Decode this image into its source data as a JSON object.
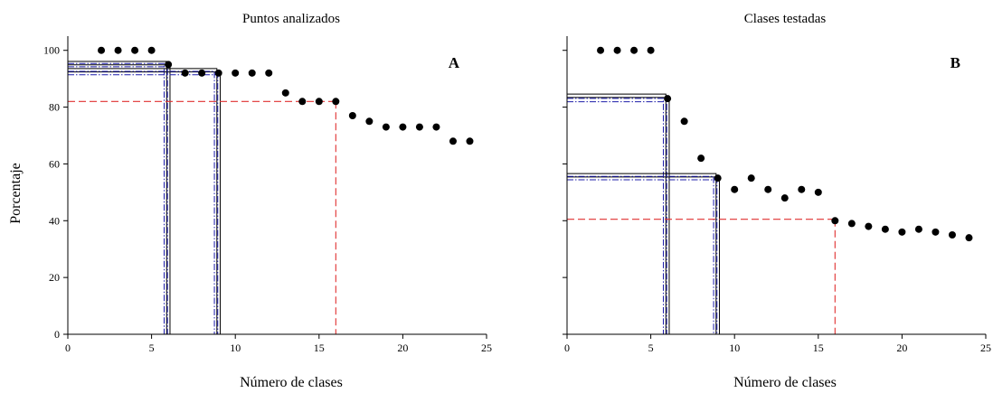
{
  "ylabel": "Porcentaje",
  "chart_data": [
    {
      "type": "scatter",
      "title": "Puntos analizados",
      "panel_letter": "A",
      "xlabel": "Número de clases",
      "ylabel": "Porcentaje",
      "xlim": [
        0,
        25
      ],
      "ylim": [
        0,
        105
      ],
      "xticks": [
        0,
        5,
        10,
        15,
        20,
        25
      ],
      "yticks": [
        0,
        20,
        40,
        60,
        80,
        100
      ],
      "show_y_tick_labels": true,
      "points": {
        "x": [
          2,
          3,
          4,
          5,
          6,
          7,
          8,
          9,
          10,
          11,
          12,
          13,
          14,
          15,
          16,
          17,
          18,
          19,
          20,
          21,
          22,
          23,
          24
        ],
        "y": [
          100,
          100,
          100,
          100,
          95,
          92,
          92,
          92,
          92,
          92,
          92,
          85,
          82,
          82,
          82,
          77,
          75,
          73,
          73,
          73,
          73,
          68,
          68
        ]
      },
      "reference_lines": [
        {
          "style": "solid-double",
          "color": "#000000",
          "x": 6.0,
          "y": 95.5,
          "offset": 0.2
        },
        {
          "style": "dash-dot",
          "color": "#1c1caa",
          "x": 5.85,
          "y": 94.8,
          "offset": 0.2
        },
        {
          "style": "solid-double",
          "color": "#000000",
          "x": 9.0,
          "y": 93.0,
          "offset": 0.2
        },
        {
          "style": "dash-dot",
          "color": "#1c1caa",
          "x": 8.85,
          "y": 92.0,
          "offset": 0.2
        },
        {
          "style": "dashed",
          "color": "#e03030",
          "x": 16.0,
          "y": 82.0
        }
      ]
    },
    {
      "type": "scatter",
      "title": "Clases testadas",
      "panel_letter": "B",
      "xlabel": "Número de clases",
      "xlim": [
        0,
        25
      ],
      "ylim": [
        0,
        105
      ],
      "xticks": [
        0,
        5,
        10,
        15,
        20,
        25
      ],
      "yticks": [
        0,
        20,
        40,
        60,
        80,
        100
      ],
      "show_y_tick_labels": false,
      "points": {
        "x": [
          2,
          3,
          4,
          5,
          6,
          7,
          8,
          9,
          10,
          11,
          12,
          13,
          14,
          15,
          16,
          17,
          18,
          19,
          20,
          21,
          22,
          23,
          24
        ],
        "y": [
          100,
          100,
          100,
          100,
          83,
          75,
          62,
          55,
          51,
          55,
          51,
          48,
          51,
          50,
          40,
          39,
          38,
          37,
          36,
          37,
          36,
          35,
          34
        ]
      },
      "reference_lines": [
        {
          "style": "solid-double",
          "color": "#000000",
          "x": 6.0,
          "y": 84.0,
          "offset": 0.2
        },
        {
          "style": "dash-dot",
          "color": "#1c1caa",
          "x": 5.85,
          "y": 82.5,
          "offset": 0.2
        },
        {
          "style": "solid-double",
          "color": "#000000",
          "x": 9.0,
          "y": 56.0,
          "offset": 0.2
        },
        {
          "style": "dash-dot",
          "color": "#1c1caa",
          "x": 8.85,
          "y": 55.0,
          "offset": 0.2
        },
        {
          "style": "dashed",
          "color": "#e03030",
          "x": 16.0,
          "y": 40.5
        }
      ]
    }
  ]
}
